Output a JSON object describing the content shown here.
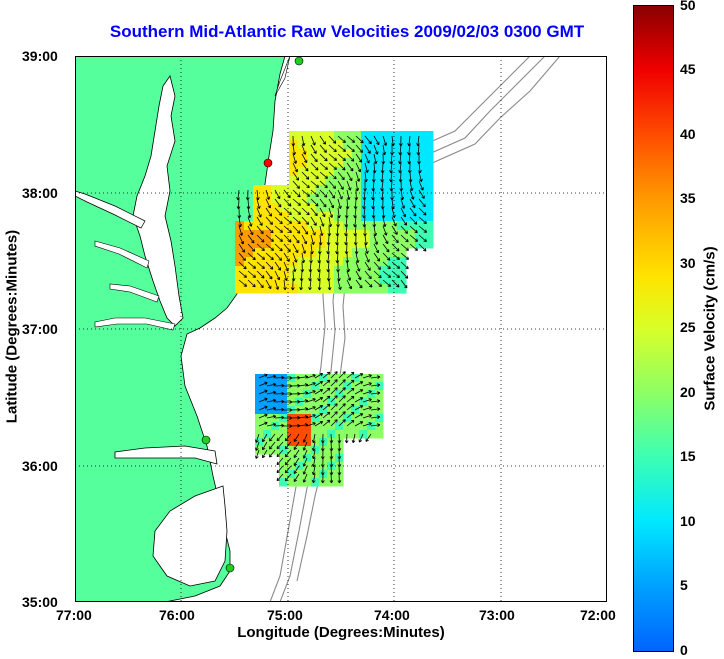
{
  "title": "Southern Mid-Atlantic Raw Velocities 2009/02/03 0300 GMT",
  "x_axis": {
    "label": "Longitude (Degrees:Minutes)",
    "ticks": [
      "77:00",
      "76:00",
      "75:00",
      "74:00",
      "73:00",
      "72:00"
    ]
  },
  "y_axis": {
    "label": "Latitude (Degrees:Minutes)",
    "ticks": [
      "39:00",
      "38:00",
      "37:00",
      "36:00",
      "35:00"
    ]
  },
  "colorbar": {
    "label": "Surface Velocity (cm/s)",
    "ticks": [
      "50",
      "45",
      "40",
      "35",
      "30",
      "25",
      "20",
      "15",
      "10",
      "5",
      "0"
    ],
    "range": [
      0,
      50
    ]
  },
  "colors": {
    "land": "#55ff9c",
    "water": "#ffffff",
    "coastline": "#000000",
    "bathymetry": "#8a8a8a",
    "title": "#0000ff",
    "station_marker_green": "#22cc22",
    "station_marker_red": "#ff0000"
  },
  "map_extent": {
    "lon": [
      -77,
      -72
    ],
    "lat": [
      35,
      39
    ]
  },
  "regions": [
    {
      "name": "northern-velocity-field",
      "dominant_speed_cm_s": 32
    },
    {
      "name": "southern-velocity-field",
      "dominant_speed_cm_s": 20
    }
  ]
}
